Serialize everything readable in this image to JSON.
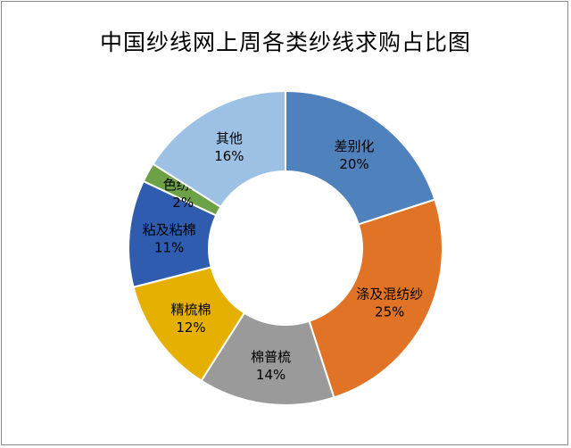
{
  "chart_data": {
    "type": "pie",
    "title": "中国纱线网上周各类纱线求购占比图",
    "categories": [
      "差别化",
      "涤及混纺纱",
      "棉普梳",
      "精梳棉",
      "粘及粘棉",
      "色纺纱",
      "其他"
    ],
    "values": [
      20,
      25,
      14,
      12,
      11,
      2,
      16
    ],
    "value_labels": [
      "20%",
      "25%",
      "14%",
      "12%",
      "11%",
      "2%",
      "16%"
    ],
    "colors": [
      "#4f81bd",
      "#e07326",
      "#9a9a9a",
      "#e6b000",
      "#2f5caf",
      "#6ca145",
      "#9dc0e5"
    ],
    "donut": true,
    "legend": "none"
  }
}
